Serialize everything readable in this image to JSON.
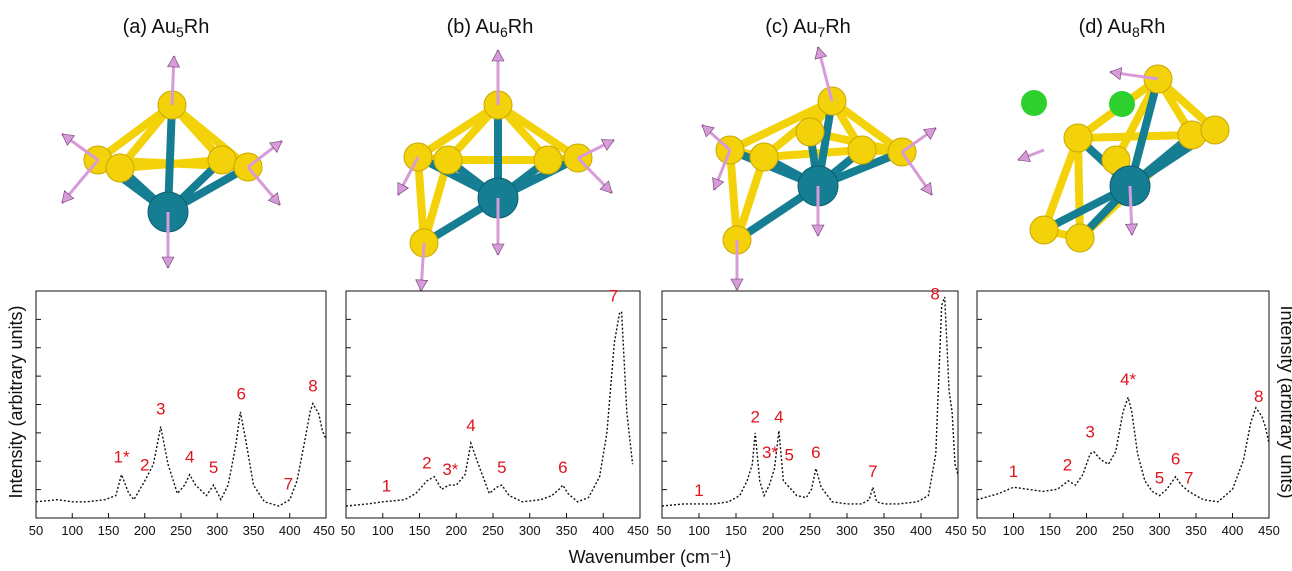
{
  "colors": {
    "gold": "#f4d20a",
    "rhodium": "#167e93",
    "vector": "#d79bd9",
    "green": "#2ed02e",
    "peak_label": "#e0141c",
    "spectrum": "#111111"
  },
  "axes": {
    "xlabel": "Wavenumber (cm⁻¹)",
    "ylabel_left": "Intensity (arbitrary units)",
    "ylabel_right": "Intensity (arbitrary units)"
  },
  "chart_data": [
    {
      "type": "line",
      "title": "(a) Au5Rh",
      "title_parts": {
        "prefix": "(a) Au",
        "sub": "5",
        "suffix": "Rh"
      },
      "xlim": [
        50,
        450
      ],
      "ylim": [
        0,
        1
      ],
      "xticks": [
        "50",
        "100",
        "150",
        "200",
        "250",
        "300",
        "350",
        "400",
        "450"
      ],
      "series": [
        {
          "x": [
            50,
            80,
            100,
            120,
            145,
            160,
            168,
            178,
            185,
            200,
            212,
            222,
            232,
            245,
            255,
            262,
            270,
            285,
            295,
            305,
            315,
            325,
            332,
            340,
            350,
            365,
            385,
            400,
            410,
            420,
            428,
            432,
            440,
            445,
            450
          ],
          "y": [
            0.02,
            0.03,
            0.02,
            0.02,
            0.03,
            0.05,
            0.15,
            0.06,
            0.03,
            0.12,
            0.2,
            0.38,
            0.2,
            0.06,
            0.1,
            0.15,
            0.1,
            0.05,
            0.1,
            0.03,
            0.1,
            0.28,
            0.45,
            0.3,
            0.1,
            0.02,
            0.0,
            0.03,
            0.12,
            0.3,
            0.45,
            0.49,
            0.44,
            0.36,
            0.32
          ]
        }
      ],
      "peak_labels": [
        {
          "text": "1*",
          "x": 168,
          "y": 0.18
        },
        {
          "text": "2",
          "x": 200,
          "y": 0.14
        },
        {
          "text": "3",
          "x": 222,
          "y": 0.41
        },
        {
          "text": "4",
          "x": 262,
          "y": 0.18
        },
        {
          "text": "5",
          "x": 295,
          "y": 0.13
        },
        {
          "text": "6",
          "x": 333,
          "y": 0.48
        },
        {
          "text": "7",
          "x": 398,
          "y": 0.05
        },
        {
          "text": "8",
          "x": 432,
          "y": 0.52
        }
      ]
    },
    {
      "type": "line",
      "title": "(b) Au6Rh",
      "title_parts": {
        "prefix": "(b) Au",
        "sub": "6",
        "suffix": "Rh"
      },
      "xlim": [
        50,
        450
      ],
      "ylim": [
        0,
        1
      ],
      "xticks": [
        "50",
        "100",
        "150",
        "200",
        "250",
        "300",
        "350",
        "400",
        "450"
      ],
      "series": [
        {
          "x": [
            50,
            80,
            100,
            130,
            145,
            160,
            170,
            180,
            190,
            200,
            212,
            220,
            230,
            245,
            255,
            262,
            272,
            290,
            315,
            330,
            340,
            345,
            352,
            365,
            380,
            395,
            405,
            415,
            422,
            425,
            432,
            440
          ],
          "y": [
            0.0,
            0.01,
            0.02,
            0.03,
            0.06,
            0.12,
            0.14,
            0.08,
            0.1,
            0.1,
            0.15,
            0.3,
            0.2,
            0.06,
            0.09,
            0.1,
            0.05,
            0.02,
            0.03,
            0.05,
            0.08,
            0.1,
            0.06,
            0.02,
            0.04,
            0.14,
            0.35,
            0.78,
            0.92,
            0.93,
            0.45,
            0.2
          ]
        }
      ],
      "peak_labels": [
        {
          "text": "1",
          "x": 105,
          "y": 0.04
        },
        {
          "text": "2",
          "x": 160,
          "y": 0.15
        },
        {
          "text": "3*",
          "x": 192,
          "y": 0.12
        },
        {
          "text": "4",
          "x": 220,
          "y": 0.33
        },
        {
          "text": "5",
          "x": 262,
          "y": 0.13
        },
        {
          "text": "6",
          "x": 345,
          "y": 0.13
        },
        {
          "text": "7",
          "x": 414,
          "y": 0.95
        }
      ]
    },
    {
      "type": "line",
      "title": "(c) Au7Rh",
      "title_parts": {
        "prefix": "(c) Au",
        "sub": "7",
        "suffix": "Rh"
      },
      "xlim": [
        50,
        450
      ],
      "ylim": [
        0,
        1
      ],
      "xticks": [
        "50",
        "100",
        "150",
        "200",
        "250",
        "300",
        "350",
        "400",
        "450"
      ],
      "series": [
        {
          "x": [
            50,
            80,
            100,
            120,
            140,
            155,
            165,
            172,
            176,
            182,
            188,
            195,
            202,
            208,
            214,
            222,
            232,
            245,
            252,
            258,
            265,
            280,
            300,
            320,
            330,
            335,
            340,
            350,
            370,
            395,
            410,
            420,
            425,
            428,
            432,
            438,
            442,
            446,
            450
          ],
          "y": [
            0.0,
            0.01,
            0.01,
            0.01,
            0.02,
            0.05,
            0.12,
            0.2,
            0.35,
            0.12,
            0.05,
            0.1,
            0.18,
            0.36,
            0.12,
            0.09,
            0.05,
            0.04,
            0.08,
            0.18,
            0.09,
            0.02,
            0.01,
            0.01,
            0.03,
            0.09,
            0.02,
            0.01,
            0.01,
            0.02,
            0.05,
            0.25,
            0.7,
            0.96,
            1.0,
            0.55,
            0.45,
            0.2,
            0.15
          ]
        }
      ],
      "peak_labels": [
        {
          "text": "2",
          "x": 176,
          "y": 0.37
        },
        {
          "text": "3*",
          "x": 196,
          "y": 0.2
        },
        {
          "text": "4",
          "x": 208,
          "y": 0.37
        },
        {
          "text": "5",
          "x": 222,
          "y": 0.19
        },
        {
          "text": "6",
          "x": 258,
          "y": 0.2
        },
        {
          "text": "7",
          "x": 335,
          "y": 0.11
        },
        {
          "text": "1",
          "x": 100,
          "y": 0.02
        },
        {
          "text": "8",
          "x": 419,
          "y": 0.96
        }
      ]
    },
    {
      "type": "line",
      "title": "(d) Au8Rh",
      "title_parts": {
        "prefix": "(d) Au",
        "sub": "8",
        "suffix": "Rh"
      },
      "xlim": [
        50,
        450
      ],
      "ylim": [
        0,
        1
      ],
      "xticks": [
        "50",
        "100",
        "150",
        "200",
        "250",
        "300",
        "350",
        "400",
        "450"
      ],
      "series": [
        {
          "x": [
            50,
            80,
            100,
            120,
            140,
            160,
            175,
            185,
            195,
            205,
            210,
            220,
            230,
            240,
            250,
            257,
            262,
            270,
            280,
            290,
            300,
            310,
            322,
            330,
            340,
            350,
            360,
            380,
            400,
            415,
            425,
            432,
            440,
            445,
            450
          ],
          "y": [
            0.03,
            0.06,
            0.09,
            0.08,
            0.07,
            0.08,
            0.12,
            0.1,
            0.15,
            0.25,
            0.26,
            0.22,
            0.2,
            0.26,
            0.45,
            0.52,
            0.45,
            0.25,
            0.12,
            0.07,
            0.05,
            0.08,
            0.14,
            0.1,
            0.07,
            0.05,
            0.03,
            0.02,
            0.08,
            0.22,
            0.4,
            0.47,
            0.43,
            0.38,
            0.3
          ]
        }
      ],
      "peak_labels": [
        {
          "text": "1",
          "x": 100,
          "y": 0.11
        },
        {
          "text": "2",
          "x": 174,
          "y": 0.14
        },
        {
          "text": "3",
          "x": 205,
          "y": 0.3
        },
        {
          "text": "4*",
          "x": 257,
          "y": 0.55
        },
        {
          "text": "5",
          "x": 300,
          "y": 0.08
        },
        {
          "text": "6",
          "x": 322,
          "y": 0.17
        },
        {
          "text": "7",
          "x": 340,
          "y": 0.08
        },
        {
          "text": "8",
          "x": 436,
          "y": 0.47
        }
      ]
    }
  ]
}
